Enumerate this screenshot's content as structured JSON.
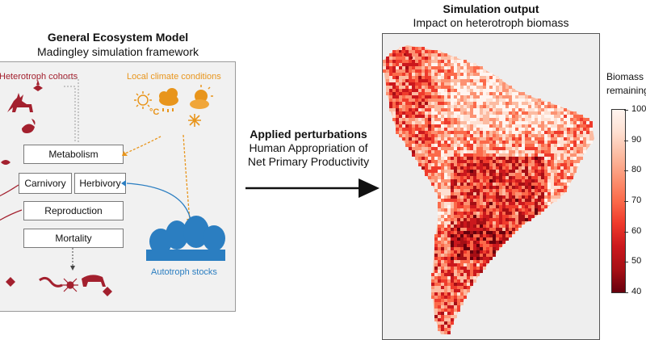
{
  "left": {
    "title": "General Ecosystem Model",
    "subtitle": "Madingley simulation framework",
    "heterotroph_label": "Heterotroph cohorts",
    "climate_label": "Local climate conditions",
    "celsius": "°C",
    "autotroph_label": "Autotroph stocks",
    "boxes": {
      "metabolism": "Metabolism",
      "carnivory": "Carnivory",
      "herbivory": "Herbivory",
      "reproduction": "Reproduction",
      "mortality": "Mortality"
    },
    "colors": {
      "heterotroph": "#a3202e",
      "climate": "#e8951c",
      "autotroph": "#2b7ec1"
    }
  },
  "middle": {
    "heading": "Applied perturbations",
    "line1": "Human Appropriation of",
    "line2": "Net Primary Productivity"
  },
  "right": {
    "title": "Simulation output",
    "subtitle": "Impact on heterotroph biomass",
    "legend_title_line1": "Biomass",
    "legend_title_line2": "remaining",
    "ticks": [
      "100",
      "90",
      "80",
      "70",
      "60",
      "50",
      "40"
    ]
  }
}
